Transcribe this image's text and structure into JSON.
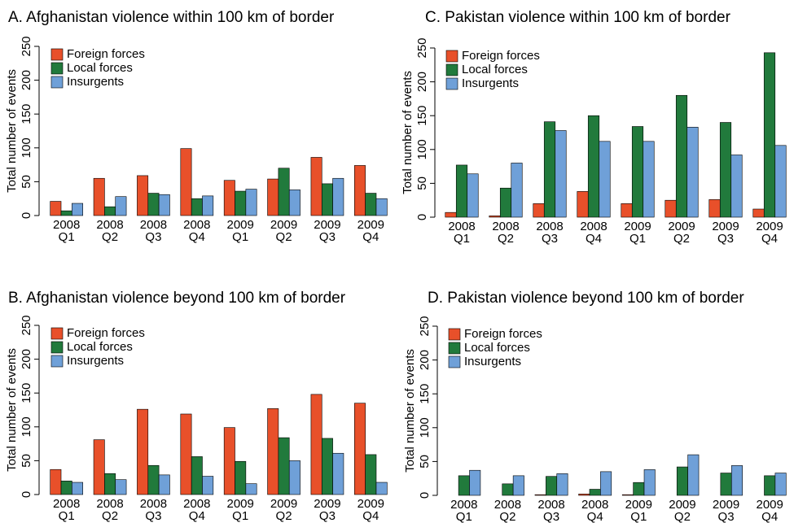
{
  "chart_data": [
    {
      "type": "bar",
      "title": "A. Afghanistan violence within 100 km of border",
      "ylabel": "Total number of events",
      "categories": [
        "2008 Q1",
        "2008 Q2",
        "2008 Q3",
        "2008 Q4",
        "2009 Q1",
        "2009 Q2",
        "2009 Q3",
        "2009 Q4"
      ],
      "series": [
        {
          "name": "Foreign forces",
          "color": "#e8502a",
          "values": [
            21,
            55,
            59,
            99,
            52,
            54,
            86,
            74
          ]
        },
        {
          "name": "Local forces",
          "color": "#217a3c",
          "values": [
            7,
            13,
            33,
            25,
            36,
            70,
            47,
            33
          ]
        },
        {
          "name": "Insurgents",
          "color": "#6fa0d8",
          "values": [
            18,
            28,
            31,
            29,
            39,
            38,
            55,
            25
          ]
        }
      ],
      "ylim": [
        0,
        250
      ],
      "yticks": [
        0,
        50,
        100,
        150,
        200,
        250
      ],
      "legend": "upper-left"
    },
    {
      "type": "bar",
      "title": "C. Pakistan violence within 100 km of border",
      "ylabel": "Total number of events",
      "categories": [
        "2008 Q1",
        "2008 Q2",
        "2008 Q3",
        "2008 Q4",
        "2009 Q1",
        "2009 Q2",
        "2009 Q3",
        "2009 Q4"
      ],
      "series": [
        {
          "name": "Foreign forces",
          "color": "#e8502a",
          "values": [
            7,
            2,
            20,
            38,
            20,
            25,
            26,
            12
          ]
        },
        {
          "name": "Local forces",
          "color": "#217a3c",
          "values": [
            77,
            43,
            141,
            150,
            134,
            180,
            140,
            243
          ]
        },
        {
          "name": "Insurgents",
          "color": "#6fa0d8",
          "values": [
            64,
            80,
            128,
            112,
            112,
            133,
            92,
            106
          ]
        }
      ],
      "ylim": [
        0,
        250
      ],
      "yticks": [
        0,
        50,
        100,
        150,
        200,
        250
      ],
      "legend": "upper-left"
    },
    {
      "type": "bar",
      "title": "B. Afghanistan violence beyond 100 km of border",
      "ylabel": "Total number of events",
      "categories": [
        "2008 Q1",
        "2008 Q2",
        "2008 Q3",
        "2008 Q4",
        "2009 Q1",
        "2009 Q2",
        "2009 Q3",
        "2009 Q4"
      ],
      "series": [
        {
          "name": "Foreign forces",
          "color": "#e8502a",
          "values": [
            37,
            81,
            126,
            119,
            99,
            127,
            148,
            135
          ]
        },
        {
          "name": "Local forces",
          "color": "#217a3c",
          "values": [
            20,
            31,
            43,
            56,
            49,
            84,
            83,
            59
          ]
        },
        {
          "name": "Insurgents",
          "color": "#6fa0d8",
          "values": [
            18,
            22,
            29,
            27,
            16,
            50,
            61,
            18
          ]
        }
      ],
      "ylim": [
        0,
        250
      ],
      "yticks": [
        0,
        50,
        100,
        150,
        200,
        250
      ],
      "legend": "upper-left"
    },
    {
      "type": "bar",
      "title": "D. Pakistan violence beyond 100 km of border",
      "ylabel": "Total number of events",
      "categories": [
        "2008 Q1",
        "2008 Q2",
        "2008 Q3",
        "2008 Q4",
        "2009 Q1",
        "2009 Q2",
        "2009 Q3",
        "2009 Q4"
      ],
      "series": [
        {
          "name": "Foreign forces",
          "color": "#e8502a",
          "values": [
            0,
            0,
            1,
            2,
            1,
            0,
            0,
            0
          ]
        },
        {
          "name": "Local forces",
          "color": "#217a3c",
          "values": [
            29,
            17,
            28,
            9,
            19,
            42,
            33,
            29
          ]
        },
        {
          "name": "Insurgents",
          "color": "#6fa0d8",
          "values": [
            37,
            29,
            32,
            35,
            38,
            60,
            44,
            33
          ]
        }
      ],
      "ylim": [
        0,
        250
      ],
      "yticks": [
        0,
        50,
        100,
        150,
        200,
        250
      ],
      "legend": "upper-left"
    }
  ]
}
